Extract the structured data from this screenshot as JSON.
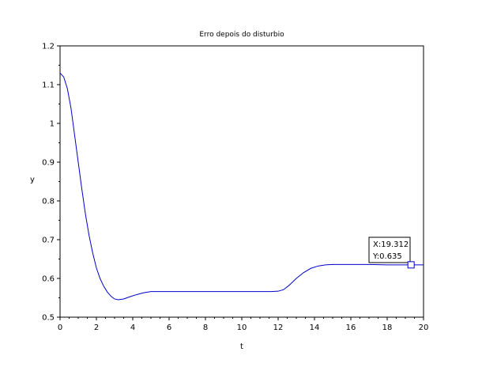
{
  "chart_data": {
    "type": "line",
    "title": "Erro depois do disturbio",
    "xlabel": "t",
    "ylabel": "y",
    "xlim": [
      0,
      20
    ],
    "ylim": [
      0.5,
      1.2
    ],
    "xticks": [
      0,
      2,
      4,
      6,
      8,
      10,
      12,
      14,
      16,
      18,
      20
    ],
    "yticks": [
      0.5,
      0.6,
      0.7,
      0.8,
      0.9,
      1,
      1.1,
      1.2
    ],
    "ytick_labels": [
      "0.5",
      "0.6",
      "0.7",
      "0.8",
      "0.9",
      "1",
      "1.1",
      "1.2"
    ],
    "grid": false,
    "series_color": "#0000cc",
    "series": [
      {
        "x": [
          0,
          0.2,
          0.4,
          0.6,
          0.8,
          1.0,
          1.2,
          1.4,
          1.6,
          1.8,
          2.0,
          2.2,
          2.4,
          2.6,
          2.8,
          3.0,
          3.2,
          3.5,
          3.8,
          4.2,
          4.6,
          5.0,
          5.4,
          6,
          7,
          8,
          9,
          10,
          11,
          11.6,
          12.0,
          12.3,
          12.6,
          13.0,
          13.4,
          13.8,
          14.2,
          14.6,
          15.0,
          15.5,
          16,
          17,
          18,
          19,
          20
        ],
        "values": [
          1.13,
          1.12,
          1.09,
          1.04,
          0.97,
          0.9,
          0.83,
          0.765,
          0.71,
          0.665,
          0.627,
          0.6,
          0.58,
          0.565,
          0.554,
          0.547,
          0.545,
          0.547,
          0.552,
          0.558,
          0.563,
          0.566,
          0.566,
          0.566,
          0.566,
          0.566,
          0.566,
          0.566,
          0.566,
          0.566,
          0.567,
          0.571,
          0.582,
          0.6,
          0.615,
          0.626,
          0.632,
          0.635,
          0.636,
          0.636,
          0.636,
          0.636,
          0.635,
          0.635,
          0.635
        ]
      }
    ],
    "datatip": {
      "x": 19.312,
      "y": 0.635,
      "x_label": "X:19.312",
      "y_label": "Y:0.635"
    }
  }
}
